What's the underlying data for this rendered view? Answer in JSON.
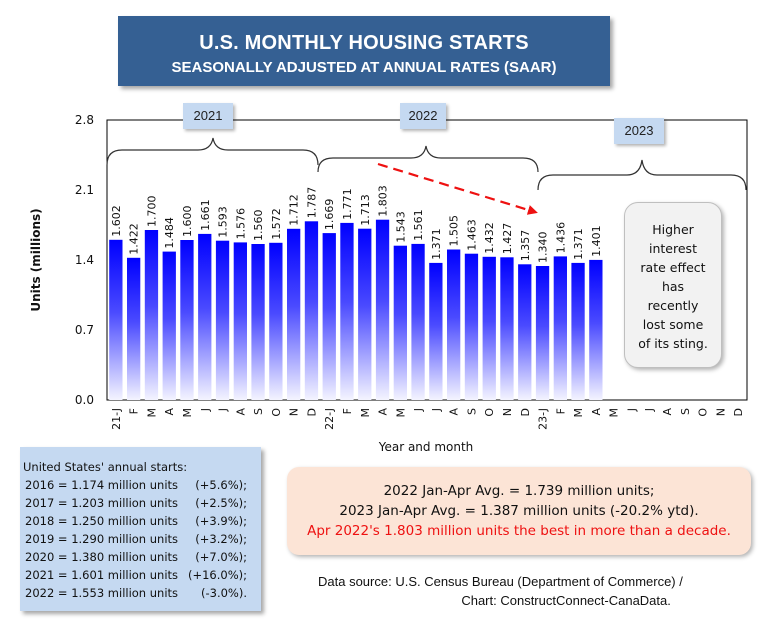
{
  "title": {
    "main": "U.S. MONTHLY HOUSING STARTS",
    "sub": "SEASONALLY ADJUSTED AT ANNUAL RATES (SAAR)"
  },
  "year_tags": [
    "2021",
    "2022",
    "2023"
  ],
  "note": [
    "Higher",
    "interest",
    "rate effect",
    "has",
    "recently",
    "lost some",
    "of its sting."
  ],
  "annual": {
    "heading": "United States' annual starts:",
    "rows": [
      {
        "left": "2016 = 1.174 million units",
        "right": "(+5.6%);"
      },
      {
        "left": "2017 = 1.203 million units",
        "right": "(+2.5%);"
      },
      {
        "left": "2018 = 1.250 million units",
        "right": "(+3.9%);"
      },
      {
        "left": "2019 = 1.290 million units",
        "right": "(+3.2%);"
      },
      {
        "left": "2020 = 1.380 million units",
        "right": "(+7.0%);"
      },
      {
        "left": "2021 = 1.601 million units",
        "right": "(+16.0%);"
      },
      {
        "left": "2022 = 1.553 million units",
        "right": "(-3.0%)."
      }
    ]
  },
  "summary": {
    "line1": "2022 Jan-Apr Avg. = 1.739 million units;",
    "line2": "2023 Jan-Apr Avg. = 1.387 million units (-20.2% ytd).",
    "line3": "Apr 2022's 1.803 million units the best in more than a decade."
  },
  "source": {
    "line1": "Data source: U.S. Census Bureau (Department of Commerce) /",
    "line2": "Chart: ConstructConnect-CanaData."
  },
  "colors": {
    "bar_top": "#0000ff",
    "bar_bottom": "#f0f0ff",
    "title_bg": "#356093",
    "arrow": "#ee1111"
  },
  "chart_data": {
    "type": "bar",
    "title": "U.S. Monthly Housing Starts — Seasonally Adjusted at Annual Rates (SAAR)",
    "xlabel": "Year and month",
    "ylabel": "Units (millions)",
    "ylim": [
      0,
      2.8
    ],
    "yticks": [
      "0.0",
      "0.7",
      "1.4",
      "2.1",
      "2.8"
    ],
    "ytick_values": [
      0,
      0.7,
      1.4,
      2.1,
      2.8
    ],
    "grid": false,
    "categories": [
      "21-J",
      "F",
      "M",
      "A",
      "M",
      "J",
      "J",
      "A",
      "S",
      "O",
      "N",
      "D",
      "22-J",
      "F",
      "M",
      "A",
      "M",
      "J",
      "J",
      "A",
      "S",
      "O",
      "N",
      "D",
      "23-J",
      "F",
      "M",
      "A",
      "M",
      "J",
      "J",
      "A",
      "S",
      "O",
      "N",
      "D"
    ],
    "values": [
      1.602,
      1.422,
      1.7,
      1.484,
      1.6,
      1.661,
      1.593,
      1.576,
      1.56,
      1.572,
      1.712,
      1.787,
      1.669,
      1.771,
      1.713,
      1.803,
      1.543,
      1.561,
      1.371,
      1.505,
      1.463,
      1.432,
      1.427,
      1.357,
      1.34,
      1.436,
      1.371,
      1.401,
      null,
      null,
      null,
      null,
      null,
      null,
      null,
      null
    ],
    "data_labels": [
      "1.602",
      "1.422",
      "1.700",
      "1.484",
      "1.600",
      "1.661",
      "1.593",
      "1.576",
      "1.560",
      "1.572",
      "1.712",
      "1.787",
      "1.669",
      "1.771",
      "1.713",
      "1.803",
      "1.543",
      "1.561",
      "1.371",
      "1.505",
      "1.463",
      "1.432",
      "1.427",
      "1.357",
      "1.340",
      "1.436",
      "1.371",
      "1.401"
    ],
    "annotations": [
      {
        "type": "brace",
        "label": "2021",
        "from": "21-J",
        "to": "D (2021)"
      },
      {
        "type": "brace",
        "label": "2022",
        "from": "22-J",
        "to": "D (2022)"
      },
      {
        "type": "brace",
        "label": "2023",
        "from": "23-J",
        "to": "D (2023)"
      },
      {
        "type": "dashed-arrow",
        "from": "Apr 2022 peak",
        "to": "Jan 2023",
        "color": "red"
      },
      {
        "type": "callout",
        "text": "Higher interest rate effect has recently lost some of its sting."
      }
    ]
  }
}
